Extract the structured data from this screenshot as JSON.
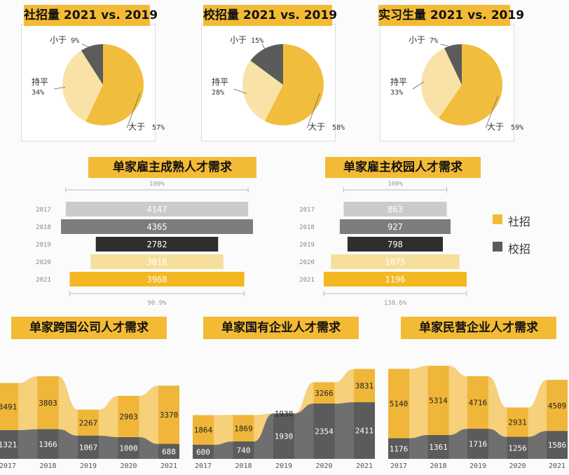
{
  "colors": {
    "social": "#f3bb35",
    "campus": "#5a5a5a",
    "pie_big": "#f1bd3c",
    "pie_even": "#f8e2a6",
    "pie_small": "#5b5b5b",
    "bar_2017": "#cbcbcb",
    "bar_2018": "#7d7d7d",
    "bar_2019": "#2e2e2e",
    "bar_2020": "#f6df9c",
    "bar_2021": "#f3b721",
    "area_light": "#f6d07a",
    "area_stripe": "#efb639",
    "area_dark": "#6f6f6f",
    "area_dark_stripe": "#5b5b5b"
  },
  "legend": [
    {
      "label": "社招",
      "color": "#f3bb35"
    },
    {
      "label": "校招",
      "color": "#5a5a5a"
    }
  ],
  "chart_data": [
    {
      "type": "pie",
      "title": "社招量 2021 vs. 2019",
      "slices": [
        {
          "label": "大于",
          "value": 57,
          "text": "57%"
        },
        {
          "label": "持平",
          "value": 34,
          "text": "34%"
        },
        {
          "label": "小于",
          "value": 9,
          "text": "9%"
        }
      ]
    },
    {
      "type": "pie",
      "title": "校招量 2021 vs. 2019",
      "slices": [
        {
          "label": "大于",
          "value": 58,
          "text": "58%"
        },
        {
          "label": "持平",
          "value": 28,
          "text": "28%"
        },
        {
          "label": "小于",
          "value": 15,
          "text": "15%"
        }
      ]
    },
    {
      "type": "pie",
      "title": "实习生量 2021 vs. 2019",
      "slices": [
        {
          "label": "大于",
          "value": 59,
          "text": "59%"
        },
        {
          "label": "持平",
          "value": 33,
          "text": "33%"
        },
        {
          "label": "小于",
          "value": 7,
          "text": "7%"
        }
      ]
    },
    {
      "type": "bar",
      "title": "单家雇主成熟人才需求",
      "categories": [
        "2017",
        "2018",
        "2019",
        "2020",
        "2021"
      ],
      "values": [
        4147,
        4365,
        2782,
        3018,
        3968
      ],
      "top_text": "100%",
      "bottom_text": "90.9%"
    },
    {
      "type": "bar",
      "title": "单家雇主校园人才需求",
      "categories": [
        "2017",
        "2018",
        "2019",
        "2020",
        "2021"
      ],
      "values": [
        863,
        927,
        798,
        1075,
        1196
      ],
      "top_text": "100%",
      "bottom_text": "138.6%"
    },
    {
      "type": "area",
      "title": "单家跨国公司人才需求",
      "x": [
        "2017",
        "2018",
        "2019",
        "2020",
        "2021"
      ],
      "series": [
        {
          "name": "社招",
          "values": [
            3491,
            3803,
            2267,
            2903,
            3370
          ]
        },
        {
          "name": "校招",
          "values": [
            1321,
            1366,
            1067,
            1000,
            688
          ]
        }
      ],
      "ylim": [
        0,
        4000
      ]
    },
    {
      "type": "area",
      "title": "单家国有企业人才需求",
      "x": [
        "2017",
        "2018",
        "2019",
        "2020",
        "2021"
      ],
      "series": [
        {
          "name": "社招",
          "values": [
            1864,
            1869,
            1930,
            3266,
            3831
          ]
        },
        {
          "name": "校招",
          "values": [
            600,
            740,
            1930,
            2354,
            2411
          ]
        }
      ],
      "ylim": [
        0,
        4000
      ]
    },
    {
      "type": "area",
      "title": "单家民营企业人才需求",
      "x": [
        "2017",
        "2018",
        "2019",
        "2020",
        "2021"
      ],
      "series": [
        {
          "name": "社招",
          "values": [
            5140,
            5314,
            4716,
            2931,
            4509
          ]
        },
        {
          "name": "校招",
          "values": [
            1176,
            1361,
            1716,
            1256,
            1586
          ]
        }
      ],
      "ylim": [
        0,
        5600
      ]
    }
  ]
}
